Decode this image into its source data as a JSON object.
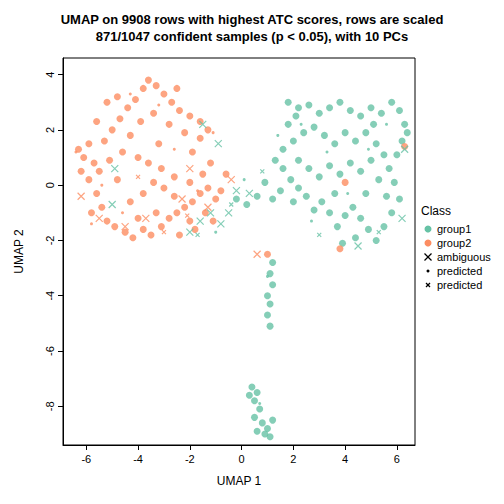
{
  "chart_data": {
    "type": "scatter",
    "title": "UMAP on 9908 rows with highest ATC scores, rows are scaled",
    "subtitle": "871/1047 confident samples (p < 0.05), with 10 PCs",
    "x_label": "UMAP 1",
    "y_label": "UMAP 2",
    "legend_title": "Class",
    "legend": "right",
    "grid": false,
    "xlim": [
      -6.9,
      6.7
    ],
    "xticks": [
      -6,
      -4,
      -2,
      0,
      2,
      4,
      6
    ],
    "ylim": [
      -9.4,
      4.6
    ],
    "yticks": [
      -8,
      -6,
      -4,
      -2,
      0,
      2,
      4
    ],
    "series": [
      {
        "name": "group1",
        "color": "#66C2A5",
        "marker": "circle",
        "x": [
          1.8,
          2.2,
          2.6,
          3.0,
          3.4,
          3.8,
          4.2,
          4.6,
          5.0,
          5.4,
          5.8,
          6.1,
          6.3,
          6.2,
          6.0,
          5.7,
          5.9,
          6.1,
          5.8,
          5.5,
          5.2,
          4.9,
          4.6,
          4.3,
          4.0,
          3.7,
          3.4,
          3.1,
          2.8,
          2.5,
          2.2,
          1.9,
          1.6,
          1.3,
          1.6,
          2.0,
          2.4,
          2.8,
          3.2,
          3.6,
          4.0,
          4.4,
          4.8,
          5.2,
          5.5,
          5.0,
          4.6,
          4.2,
          3.8,
          3.4,
          3.0,
          2.6,
          2.2,
          1.8,
          2.1,
          5.3,
          4.8,
          3.6,
          2.0,
          1.5,
          0.6,
          0.2,
          -0.2,
          0.9,
          1.2,
          5.6,
          4.4,
          3.9,
          6.4,
          5.1,
          1.2,
          1.1,
          1.2,
          1.0,
          1.1,
          1.0,
          1.1,
          0.4,
          0.6,
          0.5,
          0.7,
          0.5,
          0.8,
          1.0,
          1.2,
          0.9,
          0.6,
          0.3,
          1.1
        ],
        "y": [
          3.0,
          2.8,
          2.9,
          2.6,
          2.8,
          3.0,
          2.7,
          2.5,
          2.8,
          2.6,
          3.0,
          2.7,
          2.2,
          1.6,
          1.1,
          0.6,
          0.1,
          -0.5,
          -1.0,
          -1.5,
          -2.0,
          -1.6,
          -1.2,
          -0.8,
          -1.1,
          -1.5,
          -1.0,
          -0.6,
          -0.9,
          -0.4,
          -0.1,
          0.2,
          0.6,
          0.9,
          1.3,
          1.6,
          1.9,
          2.1,
          1.8,
          1.5,
          1.9,
          1.6,
          1.9,
          1.5,
          1.1,
          0.9,
          0.5,
          0.8,
          0.4,
          0.7,
          0.3,
          0.6,
          0.9,
          2.2,
          2.5,
          0.2,
          -0.3,
          -0.3,
          -0.6,
          -0.2,
          -0.4,
          -0.7,
          -0.5,
          0.1,
          -0.5,
          -0.4,
          -1.9,
          -2.1,
          1.9,
          2.2,
          -2.8,
          -3.2,
          -3.6,
          -4.0,
          -4.3,
          -4.7,
          -5.1,
          -7.3,
          -7.5,
          -7.8,
          -8.1,
          -8.4,
          -8.6,
          -8.8,
          -8.5,
          -9.0,
          -8.9,
          -7.6,
          -9.1
        ]
      },
      {
        "name": "group2",
        "color": "#FC8D62",
        "marker": "circle",
        "x": [
          -6.3,
          -6.1,
          -5.9,
          -5.7,
          -5.5,
          -5.9,
          -5.6,
          -5.4,
          -5.8,
          -5.2,
          -4.9,
          -4.5,
          -4.2,
          -3.8,
          -3.5,
          -3.1,
          -2.8,
          -2.5,
          -2.2,
          -1.9,
          -1.6,
          -1.3,
          -1.0,
          -1.4,
          -2.0,
          -2.6,
          -3.0,
          -3.4,
          -3.8,
          -4.3,
          -4.8,
          -5.1,
          -5.3,
          -5.0,
          -4.7,
          -4.4,
          -4.1,
          -3.8,
          -3.6,
          -3.3,
          -3.0,
          -2.7,
          -2.4,
          -2.0,
          -1.6,
          -1.3,
          -1.6,
          -2.2,
          -2.8,
          -3.4,
          -3.9,
          -4.3,
          -4.6,
          -4.0,
          -3.6,
          -3.1,
          -2.6,
          -2.0,
          -1.5,
          -1.2,
          -5.2,
          -4.8,
          -5.6,
          -6.2,
          -2.4,
          -1.8,
          -1.1,
          -0.8,
          -3.3,
          -4.0,
          -2.5,
          -3.2,
          -1.9,
          -0.6,
          1.0,
          3.8,
          4.0,
          6.3
        ],
        "y": [
          1.3,
          1.0,
          1.5,
          0.8,
          0.5,
          0.2,
          -0.3,
          -0.8,
          -1.0,
          -1.3,
          -1.5,
          -1.7,
          -1.9,
          -1.6,
          -1.8,
          -1.5,
          -1.2,
          -1.0,
          -0.8,
          -0.6,
          -0.3,
          -0.1,
          -0.5,
          -1.0,
          -1.3,
          -0.4,
          -0.1,
          0.1,
          -0.3,
          -0.6,
          0.2,
          0.9,
          1.6,
          2.0,
          2.4,
          2.8,
          3.1,
          3.5,
          3.8,
          3.6,
          3.3,
          3.0,
          2.7,
          2.5,
          2.3,
          2.0,
          1.7,
          1.9,
          2.2,
          2.6,
          2.3,
          1.8,
          1.2,
          1.0,
          0.8,
          0.6,
          0.3,
          0.1,
          0.4,
          0.8,
          3.0,
          3.2,
          2.3,
          0.5,
          -1.8,
          -1.6,
          -1.3,
          -0.2,
          -1.0,
          -1.2,
          3.5,
          1.5,
          1.2,
          0.4,
          -2.5,
          -2.3,
          0.1,
          1.4
        ]
      },
      {
        "name": "ambiguous",
        "marker": "x",
        "x": [
          -1.2,
          -0.8,
          -0.5,
          -0.2,
          0.3,
          -1.6,
          -2.0,
          -1.5,
          -0.9,
          -5.0,
          -4.9,
          6.2,
          6.3,
          4.5,
          -5.5,
          -4.5,
          -2.3,
          -1.3,
          -0.4,
          -6.2,
          -3.7,
          -2.0,
          0.6
        ],
        "y": [
          -1.0,
          -1.4,
          -1.0,
          -0.2,
          -0.3,
          -1.3,
          -1.7,
          2.2,
          1.5,
          -0.7,
          0.6,
          -1.2,
          1.3,
          -2.2,
          -1.2,
          -1.5,
          -0.5,
          -0.8,
          0.2,
          -0.4,
          -1.2,
          0.6,
          -2.5
        ],
        "colors": [
          "#66C2A5",
          "#66C2A5",
          "#66C2A5",
          "#66C2A5",
          "#66C2A5",
          "#66C2A5",
          "#66C2A5",
          "#66C2A5",
          "#66C2A5",
          "#66C2A5",
          "#66C2A5",
          "#66C2A5",
          "#66C2A5",
          "#66C2A5",
          "#FC8D62",
          "#FC8D62",
          "#FC8D62",
          "#FC8D62",
          "#FC8D62",
          "#FC8D62",
          "#FC8D62",
          "#FC8D62",
          "#FC8D62"
        ]
      },
      {
        "name": "predicted",
        "marker": "dot",
        "x": [
          -6.4,
          -5.8,
          -4.6,
          -3.2,
          -2.6,
          -1.1,
          -4.3,
          -5.4,
          -1.7,
          2.3,
          3.3,
          4.9,
          5.6,
          2.7,
          4.1,
          1.0,
          0.7,
          1.4,
          -1.0,
          0.1
        ],
        "y": [
          1.2,
          -1.4,
          -1.0,
          2.9,
          1.3,
          1.9,
          3.3,
          0.0,
          -0.2,
          2.2,
          1.2,
          1.3,
          2.2,
          -1.3,
          -0.3,
          -3.3,
          -7.9,
          1.8,
          -1.7,
          0.2
        ],
        "colors": [
          "#FC8D62",
          "#FC8D62",
          "#FC8D62",
          "#FC8D62",
          "#FC8D62",
          "#FC8D62",
          "#FC8D62",
          "#FC8D62",
          "#FC8D62",
          "#66C2A5",
          "#66C2A5",
          "#66C2A5",
          "#66C2A5",
          "#66C2A5",
          "#66C2A5",
          "#66C2A5",
          "#66C2A5",
          "#66C2A5",
          "#66C2A5",
          "#66C2A5"
        ]
      },
      {
        "name": "predicted",
        "marker": "small_x",
        "x": [
          -3.0,
          -4.0,
          -2.1,
          -1.7,
          -0.4,
          0.8,
          3.0,
          5.3
        ],
        "y": [
          -1.7,
          0.3,
          -1.1,
          -1.8,
          -0.7,
          0.5,
          -1.8,
          -1.7
        ],
        "colors": [
          "#FC8D62",
          "#FC8D62",
          "#FC8D62",
          "#66C2A5",
          "#66C2A5",
          "#66C2A5",
          "#66C2A5",
          "#66C2A5"
        ]
      }
    ]
  }
}
